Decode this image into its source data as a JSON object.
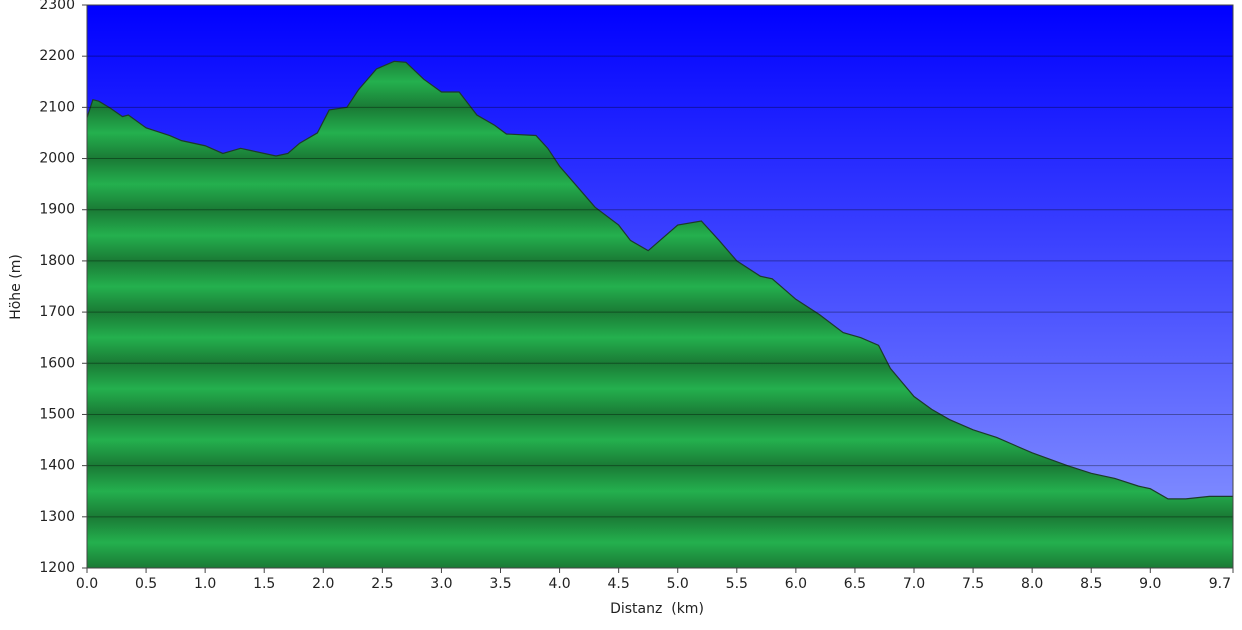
{
  "chart_data": {
    "type": "area",
    "xlabel": "Distanz  (km)",
    "ylabel": "Höhe (m)",
    "x": [
      0,
      0.05,
      0.1,
      0.2,
      0.3,
      0.35,
      0.5,
      0.7,
      0.8,
      1.0,
      1.15,
      1.3,
      1.4,
      1.6,
      1.7,
      1.8,
      1.95,
      2.05,
      2.2,
      2.3,
      2.45,
      2.6,
      2.7,
      2.85,
      3.0,
      3.15,
      3.3,
      3.45,
      3.55,
      3.8,
      3.9,
      4.0,
      4.15,
      4.3,
      4.5,
      4.6,
      4.75,
      4.85,
      5.0,
      5.2,
      5.35,
      5.5,
      5.7,
      5.8,
      6.0,
      6.2,
      6.4,
      6.55,
      6.7,
      6.8,
      7.0,
      7.15,
      7.3,
      7.5,
      7.7,
      8.0,
      8.3,
      8.5,
      8.7,
      8.9,
      9.0,
      9.15,
      9.3,
      9.5,
      9.7
    ],
    "series": [
      {
        "color": "#22aa4a",
        "values": [
          2080,
          2115,
          2112,
          2098,
          2082,
          2085,
          2060,
          2045,
          2035,
          2025,
          2010,
          2020,
          2015,
          2005,
          2010,
          2030,
          2050,
          2095,
          2100,
          2135,
          2175,
          2190,
          2188,
          2155,
          2130,
          2130,
          2085,
          2065,
          2048,
          2045,
          2020,
          1985,
          1945,
          1905,
          1870,
          1840,
          1820,
          1840,
          1870,
          1878,
          1840,
          1800,
          1770,
          1765,
          1725,
          1695,
          1660,
          1650,
          1635,
          1590,
          1535,
          1510,
          1490,
          1470,
          1455,
          1425,
          1400,
          1385,
          1375,
          1360,
          1355,
          1335,
          1335,
          1340,
          1340
        ]
      }
    ],
    "xlim": [
      0,
      9.7
    ],
    "xticks": [
      {
        "value": 0,
        "label": "0.0"
      },
      0.5,
      {
        "value": 1,
        "label": "1.0"
      },
      1.5,
      {
        "value": 2,
        "label": "2.0"
      },
      2.5,
      {
        "value": 3,
        "label": "3.0"
      },
      3.5,
      {
        "value": 4,
        "label": "4.0"
      },
      4.5,
      {
        "value": 5,
        "label": "5.0"
      },
      5.5,
      {
        "value": 6,
        "label": "6.0"
      },
      6.5,
      {
        "value": 7,
        "label": "7.0"
      },
      7.5,
      {
        "value": 8,
        "label": "8.0"
      },
      8.5,
      {
        "value": 9,
        "label": "9.0"
      },
      9.7
    ],
    "ylim": [
      1200,
      2300
    ],
    "yticks": [
      1200,
      1300,
      1400,
      1500,
      1600,
      1700,
      1800,
      1900,
      2000,
      2100,
      2200,
      2300
    ],
    "grid": true
  }
}
